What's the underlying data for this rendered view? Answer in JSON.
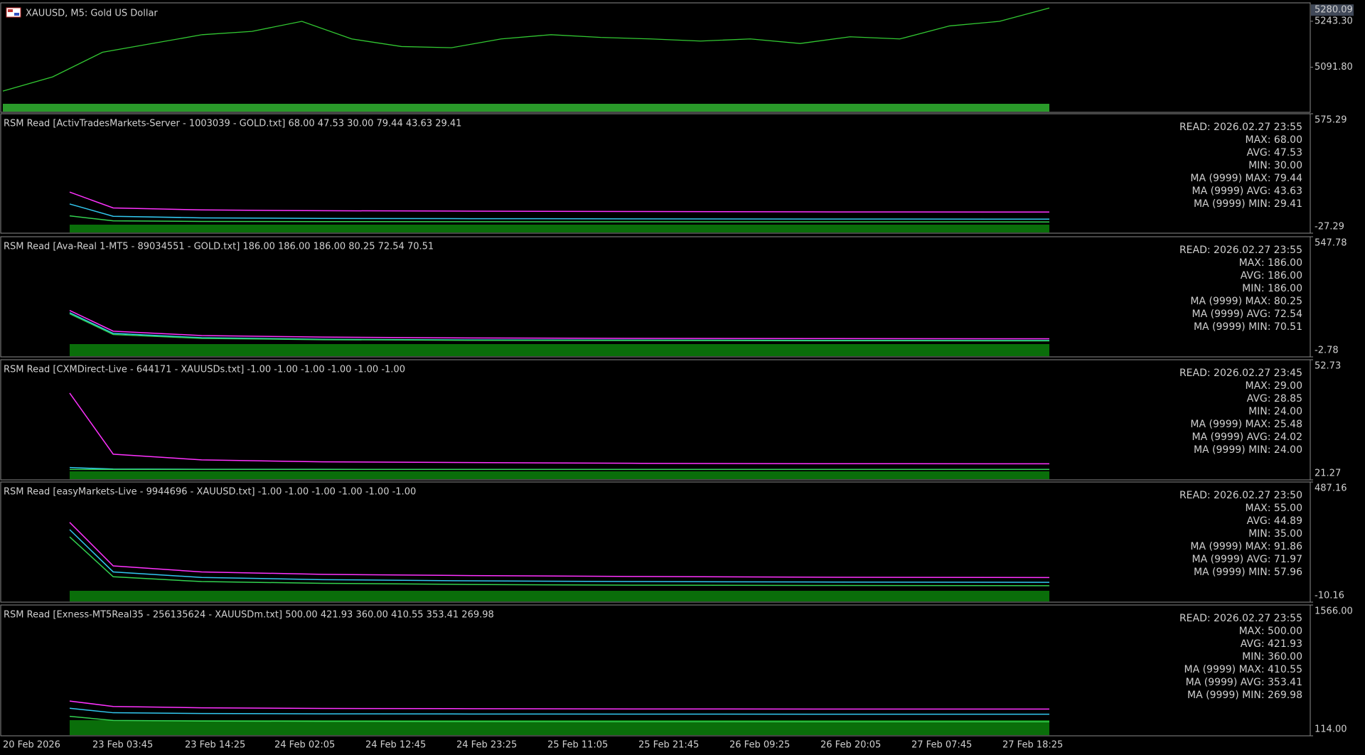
{
  "window": {
    "symbol_title": "XAUUSD, M5:  Gold US Dollar"
  },
  "price_panel": {
    "ylim": [
      4943,
      5304
    ],
    "ticks": [
      {
        "value": 5243.3,
        "label": "5243.30"
      },
      {
        "value": 5091.8,
        "label": "5091.80"
      }
    ],
    "current": {
      "value": 5280.09,
      "label": "5280.09"
    },
    "color": "#32c832",
    "values": [
      5013,
      5060,
      5141,
      5170,
      5199,
      5210,
      5243,
      5185,
      5160,
      5156,
      5185,
      5199,
      5190,
      5185,
      5178,
      5185,
      5170,
      5192,
      5185,
      5228,
      5243,
      5287
    ]
  },
  "panels": [
    {
      "title": "RSM Read [ActivTradesMarkets-Server - 1003039 - GOLD.txt] 68.00 47.53 30.00 79.44 43.63 29.41",
      "ylim": [
        {
          "value": -27.29,
          "label": "-27.29"
        },
        {
          "value": 575.29,
          "label": "575.29"
        }
      ],
      "legend": [
        {
          "text": "READ: 2026.02.27 23:55",
          "color": "#f5a623"
        },
        {
          "text": "MAX: 68.00",
          "color": "#ff2020"
        },
        {
          "text": "AVG: 47.53",
          "color": "#ffd21e"
        },
        {
          "text": "MIN: 30.00",
          "color": "#0a6e0a"
        },
        {
          "text": "MA (9999) MAX: 79.44",
          "color": "#ff32ff"
        },
        {
          "text": "MA (9999) AVG: 43.63",
          "color": "#32c8f0"
        },
        {
          "text": "MA (9999) MIN: 29.41",
          "color": "#32d250"
        }
      ],
      "ma": [
        {
          "color": "#ff32ff",
          "values": [
            180,
            100,
            90,
            86,
            84,
            82,
            80,
            79.44
          ]
        },
        {
          "color": "#32c8f0",
          "values": [
            120,
            58,
            50,
            47,
            46,
            45,
            44,
            43.63
          ]
        },
        {
          "color": "#32d250",
          "values": [
            60,
            35,
            32,
            31,
            30.5,
            30,
            29.6,
            29.41
          ]
        }
      ]
    },
    {
      "title": "RSM Read [Ava-Real 1-MT5 - 89034551 - GOLD.txt] 186.00 186.00 186.00 80.25 72.54 70.51",
      "ylim": [
        {
          "value": -2.78,
          "label": "-2.78"
        },
        {
          "value": 547.78,
          "label": "547.78"
        }
      ],
      "legend": [
        {
          "text": "READ: 2026.02.27 23:55",
          "color": "#f5a623"
        },
        {
          "text": "MAX: 186.00",
          "color": "#ff2020"
        },
        {
          "text": "AVG: 186.00",
          "color": "#ffd21e"
        },
        {
          "text": "MIN: 186.00",
          "color": "#0a6e0a"
        },
        {
          "text": "MA (9999) MAX: 80.25",
          "color": "#ff32ff"
        },
        {
          "text": "MA (9999) AVG: 72.54",
          "color": "#32c8f0"
        },
        {
          "text": "MA (9999) MIN: 70.51",
          "color": "#32d250"
        }
      ],
      "ma": [
        {
          "color": "#ff32ff",
          "values": [
            210,
            115,
            95,
            88,
            84,
            82,
            81,
            80.25
          ]
        },
        {
          "color": "#32c8f0",
          "values": [
            200,
            105,
            85,
            78,
            75,
            74,
            73,
            72.54
          ]
        },
        {
          "color": "#32d250",
          "values": [
            195,
            100,
            82,
            76,
            73,
            72,
            71,
            70.51
          ]
        }
      ]
    },
    {
      "title": "RSM Read [CXMDirect-Live - 644171 - XAUUSDs.txt] -1.00 -1.00 -1.00 -1.00 -1.00 -1.00",
      "ylim": [
        {
          "value": 21.27,
          "label": "21.27"
        },
        {
          "value": 52.73,
          "label": "52.73"
        }
      ],
      "legend": [
        {
          "text": "READ: 2026.02.27 23:45",
          "color": "#f5a623"
        },
        {
          "text": "MAX: 29.00",
          "color": "#ff2020"
        },
        {
          "text": "AVG: 28.85",
          "color": "#ffd21e"
        },
        {
          "text": "MIN: 24.00",
          "color": "#0a6e0a"
        },
        {
          "text": "MA (9999) MAX: 25.48",
          "color": "#ff32ff"
        },
        {
          "text": "MA (9999) AVG: 24.02",
          "color": "#32c8f0"
        },
        {
          "text": "MA (9999) MIN: 24.00",
          "color": "#32d250"
        }
      ],
      "ma": [
        {
          "color": "#ff32ff",
          "values": [
            44,
            28,
            26.5,
            26,
            25.8,
            25.6,
            25.5,
            25.48
          ]
        },
        {
          "color": "#32c8f0",
          "values": [
            24.5,
            24.1,
            24.05,
            24.03,
            24.02,
            24.02,
            24.02,
            24.02
          ]
        },
        {
          "color": "#32d250",
          "values": [
            24,
            24,
            24,
            24,
            24,
            24,
            24,
            24
          ]
        }
      ]
    },
    {
      "title": "RSM Read [easyMarkets-Live - 9944696 - XAUUSD.txt] -1.00 -1.00 -1.00 -1.00 -1.00 -1.00",
      "ylim": [
        {
          "value": -10.16,
          "label": "-10.16"
        },
        {
          "value": 487.16,
          "label": "487.16"
        }
      ],
      "legend": [
        {
          "text": "READ: 2026.02.27 23:50",
          "color": "#f5a623"
        },
        {
          "text": "MAX: 55.00",
          "color": "#ff2020"
        },
        {
          "text": "AVG: 44.89",
          "color": "#ffd21e"
        },
        {
          "text": "MIN: 35.00",
          "color": "#0a6e0a"
        },
        {
          "text": "MA (9999) MAX: 91.86",
          "color": "#ff32ff"
        },
        {
          "text": "MA (9999) AVG: 71.97",
          "color": "#32c8f0"
        },
        {
          "text": "MA (9999) MIN: 57.96",
          "color": "#32d250"
        }
      ],
      "ma": [
        {
          "color": "#ff32ff",
          "values": [
            320,
            140,
            115,
            105,
            100,
            96,
            93,
            91.86
          ]
        },
        {
          "color": "#32c8f0",
          "values": [
            290,
            115,
            92,
            83,
            78,
            75,
            73,
            71.97
          ]
        },
        {
          "color": "#32d250",
          "values": [
            260,
            95,
            75,
            68,
            63,
            60,
            59,
            57.96
          ]
        }
      ]
    },
    {
      "title": "RSM Read [Exness-MT5Real35 - 256135624 - XAUUSDm.txt] 500.00 421.93 360.00 410.55 353.41 269.98",
      "ylim": [
        {
          "value": 114.0,
          "label": "114.00"
        },
        {
          "value": 1566.0,
          "label": "1566.00"
        }
      ],
      "legend": [
        {
          "text": "READ: 2026.02.27 23:55",
          "color": "#f5a623"
        },
        {
          "text": "MAX: 500.00",
          "color": "#ff2020"
        },
        {
          "text": "AVG: 421.93",
          "color": "#ffd21e"
        },
        {
          "text": "MIN: 360.00",
          "color": "#0a6e0a"
        },
        {
          "text": "MA (9999) MAX: 410.55",
          "color": "#ff32ff"
        },
        {
          "text": "MA (9999) AVG: 353.41",
          "color": "#32c8f0"
        },
        {
          "text": "MA (9999) MIN: 269.98",
          "color": "#32d250"
        }
      ],
      "ma": [
        {
          "color": "#ff32ff",
          "values": [
            500,
            440,
            425,
            418,
            415,
            412,
            411,
            410.55
          ]
        },
        {
          "color": "#32c8f0",
          "values": [
            420,
            370,
            362,
            358,
            356,
            355,
            354,
            353.41
          ]
        },
        {
          "color": "#32d250",
          "values": [
            330,
            285,
            278,
            275,
            273,
            271,
            270,
            269.98
          ]
        }
      ]
    }
  ],
  "time_axis": [
    "20 Feb 2026",
    "23 Feb 03:45",
    "23 Feb 14:25",
    "24 Feb 02:05",
    "24 Feb 12:45",
    "24 Feb 23:25",
    "25 Feb 11:05",
    "25 Feb 21:45",
    "26 Feb 09:25",
    "26 Feb 20:05",
    "27 Feb 07:45",
    "27 Feb 18:25"
  ]
}
